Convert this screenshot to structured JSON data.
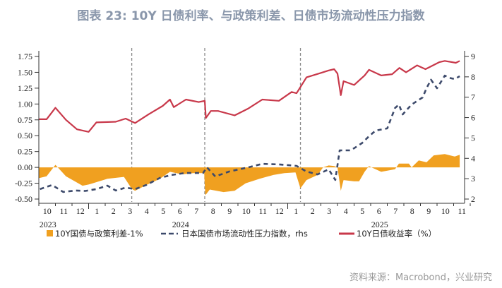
{
  "title": "图表 23: 10Y 日债利率、与政策利差、日债市场流动性压力指数",
  "source": "资料来源：Macrobond，兴业研究",
  "chart_data": {
    "type": "line",
    "title": "图表 23: 10Y 日债利率、与政策利差、日债市场流动性压力指数",
    "left_axis": {
      "ylim": [
        -0.5,
        1.75
      ],
      "ticks": [
        "1.75",
        "1.50",
        "1.25",
        "1.00",
        "0.75",
        "0.50",
        "0.25",
        "0.00",
        "-0.25",
        "-0.50"
      ]
    },
    "right_axis": {
      "ylim": [
        2,
        9
      ],
      "ticks": [
        "9",
        "8",
        "7",
        "6",
        "5",
        "4",
        "3",
        "2"
      ]
    },
    "x_axis": {
      "months": [
        "10",
        "11",
        "12",
        "1",
        "2",
        "3",
        "4",
        "5",
        "6",
        "7",
        "8",
        "9",
        "10",
        "11",
        "12",
        "1",
        "2",
        "3",
        "4",
        "5",
        "6",
        "7",
        "8",
        "9",
        "10",
        "11"
      ],
      "years": [
        {
          "label": "2023",
          "month_index": 0
        },
        {
          "label": "2024",
          "month_index": 8
        },
        {
          "label": "2025",
          "month_index": 20
        }
      ]
    },
    "vlines": [
      "2024-03-19",
      "2024-07-31",
      "2025-01-24"
    ],
    "grid": false,
    "legend_placement": "bottom",
    "series": [
      {
        "name": "10Y国债与政策利差-1%",
        "type": "area",
        "axis": "left",
        "color": "#f0a020",
        "points": [
          [
            "2023-10-01",
            -0.17
          ],
          [
            "2023-10-15",
            -0.14
          ],
          [
            "2023-11-01",
            0.04
          ],
          [
            "2023-11-20",
            -0.14
          ],
          [
            "2023-12-08",
            -0.23
          ],
          [
            "2023-12-20",
            -0.29
          ],
          [
            "2024-01-01",
            -0.27
          ],
          [
            "2024-01-20",
            -0.22
          ],
          [
            "2024-02-05",
            -0.18
          ],
          [
            "2024-03-05",
            -0.15
          ],
          [
            "2024-03-19",
            -0.34
          ],
          [
            "2024-03-25",
            -0.37
          ],
          [
            "2024-04-15",
            -0.28
          ],
          [
            "2024-05-10",
            -0.18
          ],
          [
            "2024-05-28",
            -0.07
          ],
          [
            "2024-06-20",
            -0.11
          ],
          [
            "2024-07-10",
            -0.09
          ],
          [
            "2024-07-30",
            -0.09
          ],
          [
            "2024-08-02",
            -0.44
          ],
          [
            "2024-08-10",
            -0.35
          ],
          [
            "2024-09-05",
            -0.39
          ],
          [
            "2024-09-25",
            -0.37
          ],
          [
            "2024-10-15",
            -0.25
          ],
          [
            "2024-11-10",
            -0.18
          ],
          [
            "2024-12-05",
            -0.12
          ],
          [
            "2024-12-25",
            -0.09
          ],
          [
            "2025-01-15",
            -0.08
          ],
          [
            "2025-01-24",
            -0.33
          ],
          [
            "2025-02-05",
            -0.2
          ],
          [
            "2025-02-25",
            -0.12
          ],
          [
            "2025-03-05",
            0.0
          ],
          [
            "2025-03-15",
            0.03
          ],
          [
            "2025-03-25",
            0.02
          ],
          [
            "2025-04-01",
            0.0
          ],
          [
            "2025-04-07",
            -0.37
          ],
          [
            "2025-04-12",
            -0.2
          ],
          [
            "2025-05-01",
            -0.22
          ],
          [
            "2025-05-10",
            -0.22
          ],
          [
            "2025-05-20",
            -0.07
          ],
          [
            "2025-05-28",
            0.02
          ],
          [
            "2025-06-05",
            -0.01
          ],
          [
            "2025-06-20",
            -0.07
          ],
          [
            "2025-07-15",
            -0.03
          ],
          [
            "2025-07-22",
            0.06
          ],
          [
            "2025-08-10",
            0.06
          ],
          [
            "2025-08-15",
            0.0
          ],
          [
            "2025-08-28",
            0.11
          ],
          [
            "2025-09-12",
            0.08
          ],
          [
            "2025-09-25",
            0.19
          ],
          [
            "2025-10-15",
            0.21
          ],
          [
            "2025-11-03",
            0.17
          ],
          [
            "2025-11-12",
            0.2
          ]
        ]
      },
      {
        "name": "日本国债市场流动性压力指数，rhs",
        "type": "line",
        "dashed": true,
        "axis": "right",
        "color": "#3d4a6b",
        "points": [
          [
            "2023-10-03",
            2.49
          ],
          [
            "2023-10-25",
            2.69
          ],
          [
            "2023-11-15",
            2.35
          ],
          [
            "2023-12-08",
            2.42
          ],
          [
            "2023-12-25",
            2.4
          ],
          [
            "2024-01-15",
            2.49
          ],
          [
            "2024-02-05",
            2.66
          ],
          [
            "2024-02-20",
            2.42
          ],
          [
            "2024-03-08",
            2.56
          ],
          [
            "2024-03-25",
            2.49
          ],
          [
            "2024-04-15",
            2.69
          ],
          [
            "2024-05-10",
            3.04
          ],
          [
            "2024-06-01",
            3.18
          ],
          [
            "2024-06-25",
            3.28
          ],
          [
            "2024-07-28",
            3.28
          ],
          [
            "2024-08-05",
            3.56
          ],
          [
            "2024-08-20",
            3.11
          ],
          [
            "2024-09-15",
            3.35
          ],
          [
            "2024-10-20",
            3.56
          ],
          [
            "2024-11-15",
            3.73
          ],
          [
            "2024-12-15",
            3.7
          ],
          [
            "2025-01-17",
            3.63
          ],
          [
            "2025-02-05",
            3.35
          ],
          [
            "2025-02-25",
            3.21
          ],
          [
            "2025-03-15",
            3.46
          ],
          [
            "2025-03-27",
            2.94
          ],
          [
            "2025-04-05",
            4.39
          ],
          [
            "2025-04-25",
            4.39
          ],
          [
            "2025-05-15",
            4.74
          ],
          [
            "2025-05-28",
            5.08
          ],
          [
            "2025-06-10",
            5.36
          ],
          [
            "2025-07-01",
            5.47
          ],
          [
            "2025-07-15",
            6.47
          ],
          [
            "2025-07-22",
            6.64
          ],
          [
            "2025-07-29",
            6.16
          ],
          [
            "2025-08-15",
            6.64
          ],
          [
            "2025-09-05",
            6.99
          ],
          [
            "2025-09-12",
            7.44
          ],
          [
            "2025-09-20",
            7.86
          ],
          [
            "2025-10-01",
            7.44
          ],
          [
            "2025-10-15",
            8.06
          ],
          [
            "2025-10-22",
            7.96
          ],
          [
            "2025-11-03",
            7.89
          ],
          [
            "2025-11-12",
            8.03
          ]
        ]
      },
      {
        "name": "10Y日债收益率（%）",
        "type": "line",
        "axis": "left",
        "color": "#c8384a",
        "points": [
          [
            "2023-10-01",
            0.76
          ],
          [
            "2023-10-15",
            0.76
          ],
          [
            "2023-11-01",
            0.94
          ],
          [
            "2023-11-20",
            0.75
          ],
          [
            "2023-12-10",
            0.6
          ],
          [
            "2024-01-01",
            0.56
          ],
          [
            "2024-01-15",
            0.71
          ],
          [
            "2024-02-20",
            0.72
          ],
          [
            "2024-03-08",
            0.77
          ],
          [
            "2024-03-25",
            0.7
          ],
          [
            "2024-04-20",
            0.84
          ],
          [
            "2024-05-15",
            0.97
          ],
          [
            "2024-05-28",
            1.07
          ],
          [
            "2024-06-05",
            0.95
          ],
          [
            "2024-06-27",
            1.07
          ],
          [
            "2024-07-20",
            1.03
          ],
          [
            "2024-07-31",
            1.05
          ],
          [
            "2024-08-03",
            0.78
          ],
          [
            "2024-08-12",
            0.89
          ],
          [
            "2024-08-25",
            0.89
          ],
          [
            "2024-09-25",
            0.82
          ],
          [
            "2024-10-20",
            0.93
          ],
          [
            "2024-11-15",
            1.07
          ],
          [
            "2024-12-15",
            1.05
          ],
          [
            "2025-01-08",
            1.19
          ],
          [
            "2025-01-17",
            1.17
          ],
          [
            "2025-02-05",
            1.42
          ],
          [
            "2025-03-01",
            1.49
          ],
          [
            "2025-03-15",
            1.53
          ],
          [
            "2025-03-25",
            1.55
          ],
          [
            "2025-04-01",
            1.48
          ],
          [
            "2025-04-07",
            1.14
          ],
          [
            "2025-04-12",
            1.36
          ],
          [
            "2025-05-01",
            1.3
          ],
          [
            "2025-05-20",
            1.45
          ],
          [
            "2025-05-28",
            1.54
          ],
          [
            "2025-06-20",
            1.45
          ],
          [
            "2025-07-10",
            1.47
          ],
          [
            "2025-07-23",
            1.57
          ],
          [
            "2025-08-05",
            1.5
          ],
          [
            "2025-08-25",
            1.61
          ],
          [
            "2025-09-10",
            1.55
          ],
          [
            "2025-10-05",
            1.66
          ],
          [
            "2025-10-15",
            1.68
          ],
          [
            "2025-11-05",
            1.65
          ],
          [
            "2025-11-12",
            1.68
          ]
        ]
      }
    ]
  }
}
